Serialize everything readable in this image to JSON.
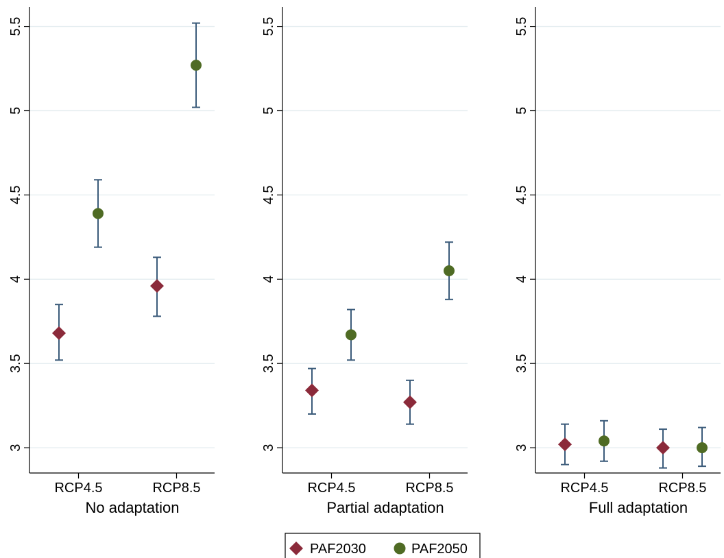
{
  "chart_data": {
    "type": "scatter",
    "y_range": [
      2.85,
      5.6
    ],
    "yticks": [
      3,
      3.5,
      4,
      4.5,
      5,
      5.5
    ],
    "ytick_labels": [
      "3",
      "3.5",
      "4",
      "4.5",
      "5",
      "5.5"
    ],
    "grid": true,
    "legend_position": "bottom-center",
    "legend": [
      {
        "name": "PAF2030",
        "marker": "diamond",
        "color": "#8B2A3A"
      },
      {
        "name": "PAF2050",
        "marker": "circle",
        "color": "#4F6B24"
      }
    ],
    "errorbar_color": "#3B5B7A",
    "panels": [
      {
        "title": "No adaptation",
        "categories": [
          "RCP4.5",
          "RCP8.5"
        ],
        "series": [
          {
            "name": "PAF2030",
            "values": [
              3.68,
              3.96
            ],
            "lower": [
              3.52,
              3.78
            ],
            "upper": [
              3.85,
              4.13
            ]
          },
          {
            "name": "PAF2050",
            "values": [
              4.39,
              5.27
            ],
            "lower": [
              4.19,
              5.02
            ],
            "upper": [
              4.59,
              5.52
            ]
          }
        ]
      },
      {
        "title": "Partial adaptation",
        "categories": [
          "RCP4.5",
          "RCP8.5"
        ],
        "series": [
          {
            "name": "PAF2030",
            "values": [
              3.34,
              3.27
            ],
            "lower": [
              3.2,
              3.14
            ],
            "upper": [
              3.47,
              3.4
            ]
          },
          {
            "name": "PAF2050",
            "values": [
              3.67,
              4.05
            ],
            "lower": [
              3.52,
              3.88
            ],
            "upper": [
              3.82,
              4.22
            ]
          }
        ]
      },
      {
        "title": "Full adaptation",
        "categories": [
          "RCP4.5",
          "RCP8.5"
        ],
        "series": [
          {
            "name": "PAF2030",
            "values": [
              3.02,
              3.0
            ],
            "lower": [
              2.9,
              2.88
            ],
            "upper": [
              3.14,
              3.11
            ]
          },
          {
            "name": "PAF2050",
            "values": [
              3.04,
              3.0
            ],
            "lower": [
              2.92,
              2.89
            ],
            "upper": [
              3.16,
              3.12
            ]
          }
        ]
      }
    ]
  }
}
